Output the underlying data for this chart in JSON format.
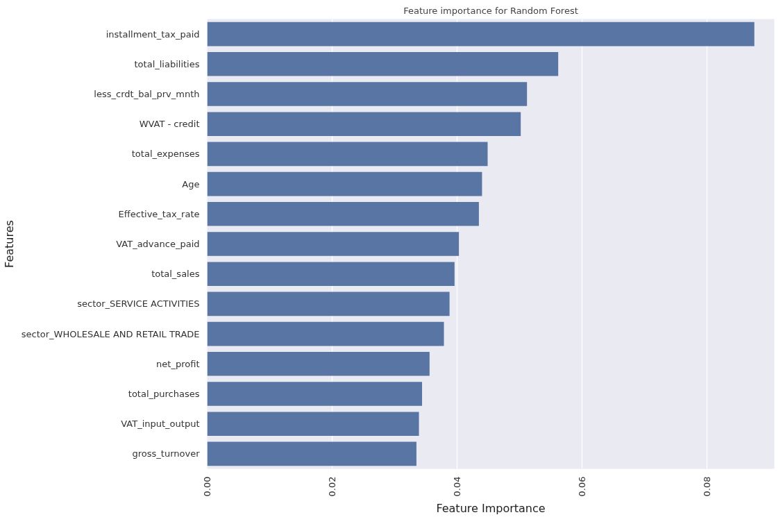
{
  "chart_data": {
    "type": "bar",
    "orientation": "horizontal",
    "title": "Feature importance for Random Forest",
    "xlabel": "Feature Importance",
    "ylabel": "Features",
    "categories": [
      "installment_tax_paid",
      "total_liabilities",
      "less_crdt_bal_prv_mnth",
      "WVAT - credit",
      "total_expenses",
      "Age",
      "Effective_tax_rate",
      "VAT_advance_paid",
      "total_sales",
      "sector_SERVICE ACTIVITIES",
      "sector_WHOLESALE AND RETAIL TRADE",
      "net_profit",
      "total_purchases",
      "VAT_input_output",
      "gross_turnover"
    ],
    "values": [
      0.0876,
      0.0562,
      0.0512,
      0.0502,
      0.0449,
      0.044,
      0.0435,
      0.0403,
      0.0396,
      0.0388,
      0.0379,
      0.0356,
      0.0344,
      0.0339,
      0.0335
    ],
    "color": "#5875a4",
    "xlim": [
      0,
      0.0908
    ],
    "xticks": [
      {
        "value": 0,
        "label": "0.00"
      },
      {
        "value": 0.02,
        "label": "0.02"
      },
      {
        "value": 0.04,
        "label": "0.04"
      },
      {
        "value": 0.06,
        "label": "0.06"
      },
      {
        "value": 0.08,
        "label": "0.08"
      }
    ],
    "grid": "x"
  }
}
